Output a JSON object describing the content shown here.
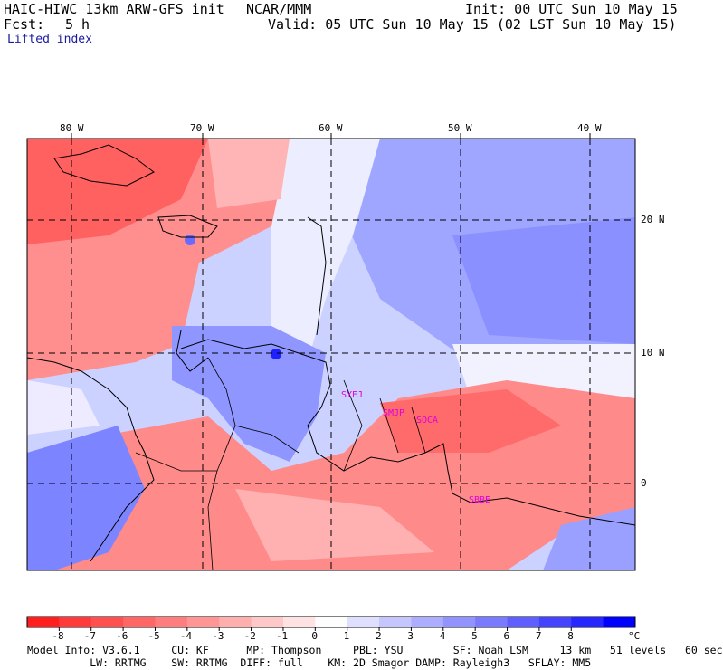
{
  "header": {
    "model_line": "HAIC-HIWC 13km ARW-GFS init",
    "org": "NCAR/MMM",
    "init": "Init: 00 UTC Sun 10 May 15",
    "fcst_label": "Fcst:",
    "fcst_value": "5 h",
    "valid": "Valid: 05 UTC Sun 10 May 15 (02 LST Sun 10 May 15)",
    "field": "Lifted index"
  },
  "map": {
    "lon_labels": [
      "80 W",
      "70 W",
      "60 W",
      "50 W",
      "40 W"
    ],
    "lat_labels": [
      "20 N",
      "10 N",
      "0"
    ],
    "stations": [
      "SYEJ",
      "SMJP",
      "SOCA",
      "SBBE"
    ]
  },
  "colorbar": {
    "ticks": [
      "-8",
      "-7",
      "-6",
      "-5",
      "-4",
      "-3",
      "-2",
      "-1",
      "0",
      "1",
      "2",
      "3",
      "4",
      "5",
      "6",
      "7",
      "8"
    ],
    "unit": "°C",
    "colors": [
      "#ff1f1f",
      "#ff3a3a",
      "#ff5050",
      "#ff6666",
      "#ff7d7d",
      "#ff9595",
      "#ffaeae",
      "#ffc8c8",
      "#ffe3e3",
      "#fdfdfd",
      "#dfe0ff",
      "#c6c6ff",
      "#adadff",
      "#9393ff",
      "#7a7aff",
      "#5f5fff",
      "#4444ff",
      "#2626ff",
      "#0000ff"
    ]
  },
  "footer": {
    "line1": "Model Info: V3.6.1     CU: KF      MP: Thompson     PBL: YSU        SF: Noah LSM     13 km   51 levels   60 sec",
    "line2": "          LW: RRTMG    SW: RRTMG  DIFF: full    KM: 2D Smagor DAMP: Rayleigh3   SFLAY: MM5"
  }
}
